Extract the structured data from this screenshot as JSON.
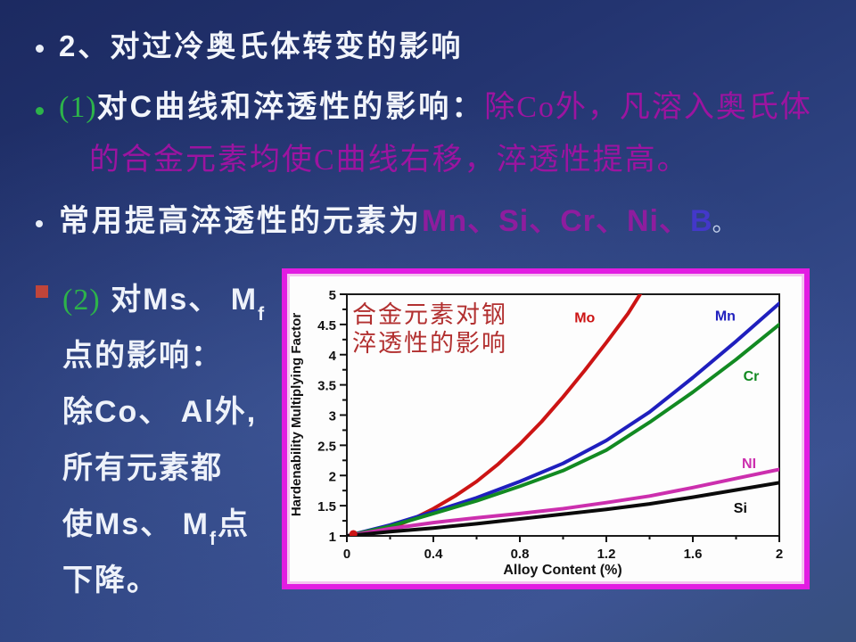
{
  "slide": {
    "bullet1": {
      "text": "2、对过冷奥氏体转变的影响"
    },
    "bullet2": {
      "prefix": "(1)",
      "head": "对C曲线和淬透性的影响：",
      "emph_line1": "除Co外，凡溶入奥氏体",
      "emph_line2": "的合金元素均使C曲线右移，淬透性提高。"
    },
    "bullet3": {
      "head": "常用提高淬透性的元素为",
      "elements": "Mn、Si、Cr、Ni、",
      "element_last": "B",
      "period": "。"
    },
    "bullet4": {
      "prefix": "(2)",
      "line1_main": " 对Ms、 M",
      "line1_sub": "f",
      "line2": "点的影响：",
      "line3": "除Co、 Al外,",
      "line4": "所有元素都",
      "line5_main": "使Ms、 M",
      "line5_sub": "f",
      "line5_tail": "点",
      "line6": "下降。"
    },
    "colors": {
      "accent_green": "#2db34a",
      "accent_magenta": "#9c14a0",
      "accent_blue_violet": "#4338c9",
      "bullet_red": "#c0453a",
      "chart_border_magenta": "#e21ce2",
      "background_blue_dark": "#1c2a61",
      "background_blue_light": "#3a5090"
    }
  },
  "chart_data": {
    "type": "line",
    "title_line1": "合金元素对钢",
    "title_line2": "淬透性的影响",
    "xlabel": "Alloy Content (%)",
    "ylabel": "Hardenability Multiplying Factor",
    "xlim": [
      0,
      2
    ],
    "ylim": [
      1,
      5
    ],
    "xticks": [
      0,
      0.4,
      0.8,
      1.2,
      1.6,
      2
    ],
    "xtick_labels": [
      "0",
      "0.4",
      "0.8",
      "1.2",
      "1.6",
      "2"
    ],
    "yticks": [
      1,
      1.5,
      2,
      2.5,
      3,
      3.5,
      4,
      4.5,
      5
    ],
    "ytick_labels": [
      "1",
      "1.5",
      "2",
      "2.5",
      "3",
      "3.5",
      "4",
      "4.5",
      "5"
    ],
    "grid": false,
    "legend_position": "labels-on-curves",
    "series": [
      {
        "name": "Mo",
        "color": "#cc1414",
        "label_pos": [
          1.1,
          4.62
        ],
        "points": [
          [
            0,
            1
          ],
          [
            0.1,
            1.05
          ],
          [
            0.2,
            1.13
          ],
          [
            0.3,
            1.27
          ],
          [
            0.4,
            1.45
          ],
          [
            0.5,
            1.66
          ],
          [
            0.6,
            1.9
          ],
          [
            0.7,
            2.19
          ],
          [
            0.8,
            2.52
          ],
          [
            0.9,
            2.89
          ],
          [
            1.0,
            3.3
          ],
          [
            1.1,
            3.74
          ],
          [
            1.2,
            4.2
          ],
          [
            1.3,
            4.68
          ],
          [
            1.4,
            5.25
          ]
        ]
      },
      {
        "name": "Mn",
        "color": "#1f1fbe",
        "label_pos": [
          1.75,
          4.65
        ],
        "points": [
          [
            0,
            1
          ],
          [
            0.2,
            1.18
          ],
          [
            0.4,
            1.4
          ],
          [
            0.6,
            1.63
          ],
          [
            0.8,
            1.9
          ],
          [
            1.0,
            2.2
          ],
          [
            1.2,
            2.58
          ],
          [
            1.4,
            3.05
          ],
          [
            1.6,
            3.62
          ],
          [
            1.8,
            4.22
          ],
          [
            2.0,
            4.85
          ]
        ]
      },
      {
        "name": "Cr",
        "color": "#128a22",
        "label_pos": [
          1.87,
          3.66
        ],
        "points": [
          [
            0,
            1
          ],
          [
            0.2,
            1.16
          ],
          [
            0.4,
            1.37
          ],
          [
            0.6,
            1.58
          ],
          [
            0.8,
            1.82
          ],
          [
            1.0,
            2.08
          ],
          [
            1.2,
            2.42
          ],
          [
            1.4,
            2.88
          ],
          [
            1.6,
            3.38
          ],
          [
            1.8,
            3.92
          ],
          [
            2.0,
            4.5
          ]
        ]
      },
      {
        "name": "NI",
        "color": "#cc2fae",
        "label_pos": [
          1.86,
          2.21
        ],
        "points": [
          [
            0,
            1
          ],
          [
            0.2,
            1.12
          ],
          [
            0.4,
            1.22
          ],
          [
            0.6,
            1.3
          ],
          [
            0.8,
            1.37
          ],
          [
            1.0,
            1.45
          ],
          [
            1.2,
            1.55
          ],
          [
            1.4,
            1.66
          ],
          [
            1.6,
            1.8
          ],
          [
            1.8,
            1.95
          ],
          [
            2.0,
            2.1
          ]
        ]
      },
      {
        "name": "Si",
        "color": "#0b0b0b",
        "label_pos": [
          1.82,
          1.47
        ],
        "points": [
          [
            0,
            1
          ],
          [
            0.2,
            1.07
          ],
          [
            0.4,
            1.13
          ],
          [
            0.6,
            1.2
          ],
          [
            0.8,
            1.28
          ],
          [
            1.0,
            1.36
          ],
          [
            1.2,
            1.44
          ],
          [
            1.4,
            1.53
          ],
          [
            1.6,
            1.64
          ],
          [
            1.8,
            1.76
          ],
          [
            2.0,
            1.88
          ]
        ]
      }
    ],
    "origin_marker": {
      "x": 0.03,
      "y": 1.03,
      "color": "#cc1414"
    }
  }
}
